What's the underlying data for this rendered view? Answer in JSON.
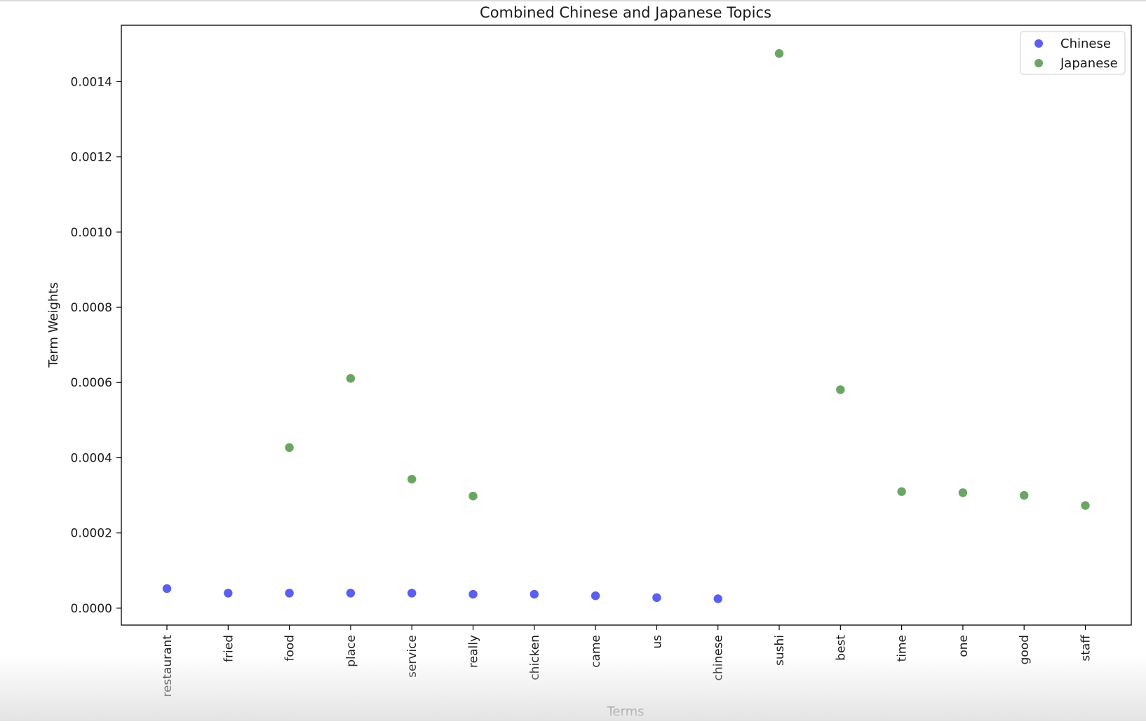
{
  "chart_data": {
    "type": "scatter",
    "title": "Combined Chinese and Japanese Topics",
    "xlabel": "Terms",
    "ylabel": "Term Weights",
    "categories": [
      "restaurant",
      "fried",
      "food",
      "place",
      "service",
      "really",
      "chicken",
      "came",
      "us",
      "chinese",
      "sushi",
      "best",
      "time",
      "one",
      "good",
      "staff"
    ],
    "ylim": [
      -4.5e-05,
      0.00155
    ],
    "yticks": [
      0.0,
      0.0002,
      0.0004,
      0.0006,
      0.0008,
      0.001,
      0.0012,
      0.0014
    ],
    "ytick_labels": [
      "0.0000",
      "0.0002",
      "0.0004",
      "0.0006",
      "0.0008",
      "0.0010",
      "0.0012",
      "0.0014"
    ],
    "grid": false,
    "legend_position": "top-right",
    "series": [
      {
        "name": "Chinese",
        "color": "#5a5ff0",
        "x": [
          "restaurant",
          "fried",
          "food",
          "place",
          "service",
          "really",
          "chicken",
          "came",
          "us",
          "chinese"
        ],
        "values": [
          5.2e-05,
          4e-05,
          4e-05,
          4e-05,
          4e-05,
          3.7e-05,
          3.7e-05,
          3.3e-05,
          2.8e-05,
          2.5e-05
        ]
      },
      {
        "name": "Japanese",
        "color": "#6aa663",
        "x": [
          "food",
          "place",
          "service",
          "really",
          "sushi",
          "best",
          "time",
          "one",
          "good",
          "staff"
        ],
        "values": [
          0.000427,
          0.000611,
          0.000343,
          0.000298,
          0.001475,
          0.000581,
          0.00031,
          0.000307,
          0.0003,
          0.000273
        ]
      }
    ]
  }
}
